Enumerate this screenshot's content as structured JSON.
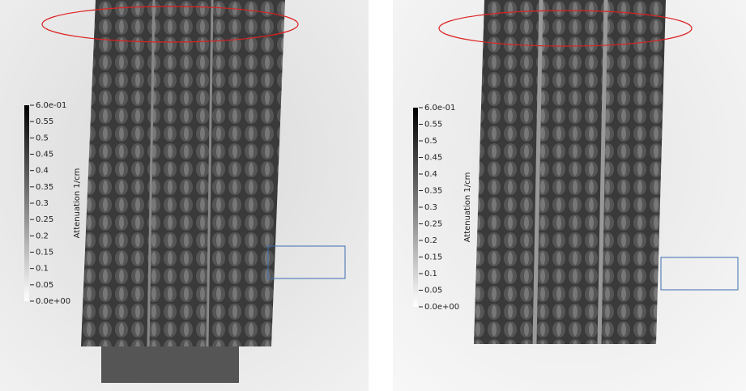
{
  "panels": [
    {
      "colorbar": {
        "label": "Attenuation 1/cm",
        "ticks": [
          {
            "value": 0.6,
            "label": "6.0e-01"
          },
          0.55,
          0.5,
          0.45,
          0.4,
          0.35,
          0.3,
          0.25,
          0.2,
          0.15,
          0.1,
          0.05,
          {
            "value": 0,
            "label": "0.0e+00"
          }
        ]
      }
    },
    {
      "colorbar": {
        "label": "Attenuation 1/cm",
        "ticks": [
          {
            "value": 0.6,
            "label": "6.0e-01"
          },
          0.55,
          0.5,
          0.45,
          0.4,
          0.35,
          0.3,
          0.25,
          0.2,
          0.15,
          0.1,
          0.05,
          {
            "value": 0,
            "label": "0.0e+00"
          }
        ]
      }
    }
  ]
}
